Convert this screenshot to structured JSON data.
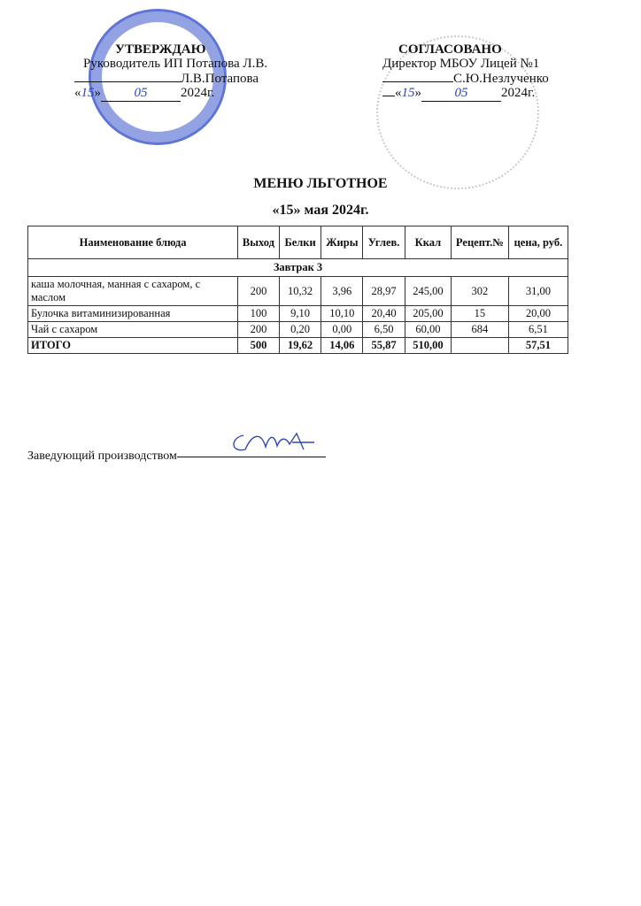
{
  "approved": {
    "heading": "УТВЕРЖДАЮ",
    "position": "Руководитель ИП Потапова Л.В.",
    "signer": "Л.В.Потапова",
    "date_open": "«",
    "date_day": "15",
    "date_close": "»",
    "date_month": "05",
    "date_year": "2024г.",
    "stamp_text": "Ростовская область, г. ... Индивидуальный предприниматель Потапова Людмила Васильевна ОГРНИП"
  },
  "agreed": {
    "heading": "СОГЛАСОВАНО",
    "position": "Директор МБОУ Лицей №1",
    "signer": "С.Ю.Незлученко",
    "date_open": "«",
    "date_day": "15",
    "date_close": "»",
    "date_month": "05",
    "date_year": "2024г."
  },
  "title": "МЕНЮ ЛЬГОТНОЕ",
  "date": "«15» мая 2024г.",
  "table": {
    "headers": [
      "Наименование блюда",
      "Выход",
      "Белки",
      "Жиры",
      "Углев.",
      "Ккал",
      "Рецепт.№",
      "цена, руб."
    ],
    "section": "Завтрак 3",
    "rows": [
      [
        "каша молочная, манная с сахаром, с маслом",
        "200",
        "10,32",
        "3,96",
        "28,97",
        "245,00",
        "302",
        "31,00"
      ],
      [
        "Булочка витаминизированная",
        "100",
        "9,10",
        "10,10",
        "20,40",
        "205,00",
        "15",
        "20,00"
      ],
      [
        "Чай с сахаром",
        "200",
        "0,20",
        "0,00",
        "6,50",
        "60,00",
        "684",
        "6,51"
      ]
    ],
    "total": [
      "ИТОГО",
      "500",
      "19,62",
      "14,06",
      "55,87",
      "510,00",
      "",
      "57,51"
    ]
  },
  "footer": {
    "label": "Заведующий производством"
  }
}
